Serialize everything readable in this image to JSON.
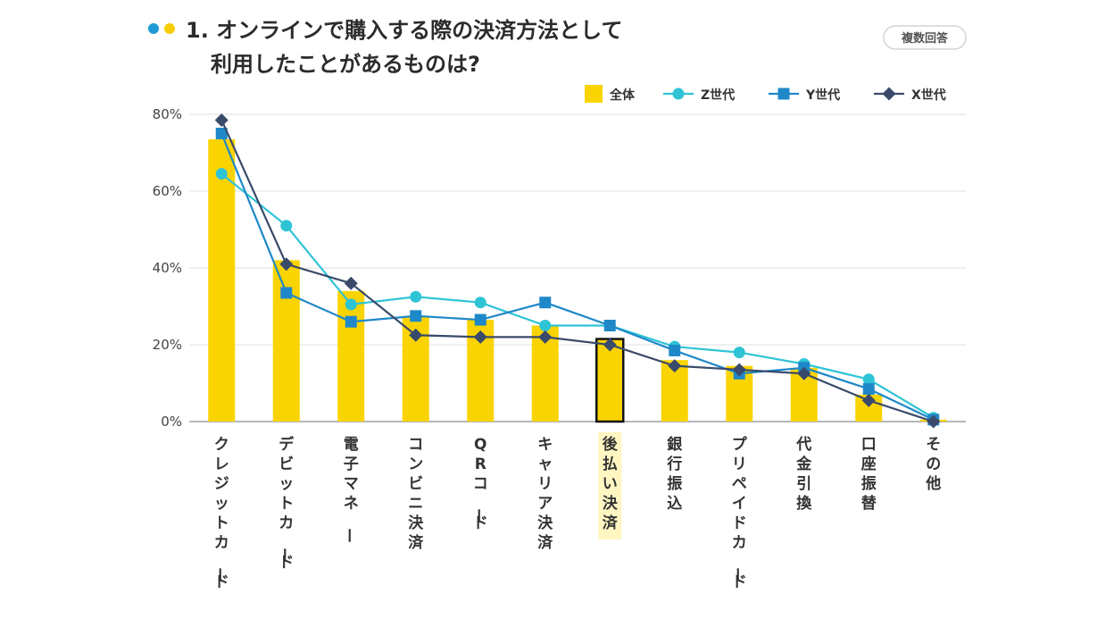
{
  "header": {
    "title_line1": "1. オンラインで購入する際の決済方法として",
    "title_line2": "利用したことがあるものは?",
    "badge": "複数回答",
    "dot_colors": [
      "#1e9bd7",
      "#f5cd00"
    ]
  },
  "legend": {
    "items": [
      {
        "label": "全体",
        "marker": "square-bar",
        "color": "#fad400"
      },
      {
        "label": "Z世代",
        "marker": "circle",
        "color": "#2ec4d6"
      },
      {
        "label": "Y世代",
        "marker": "square",
        "color": "#1f88c9"
      },
      {
        "label": "X世代",
        "marker": "diamond",
        "color": "#3a4a6b"
      }
    ]
  },
  "chart_data": {
    "type": "bar",
    "categories": [
      "クレジットカード",
      "デビットカード",
      "電子マネー",
      "コンビニ決済",
      "QRコード",
      "キャリア決済",
      "後払い決済",
      "銀行振込",
      "プリペイドカード",
      "代金引換",
      "口座振替",
      "その他"
    ],
    "highlight_category": "後払い決済",
    "ylim": [
      0,
      80
    ],
    "yticks": [
      0,
      20,
      40,
      60,
      80
    ],
    "ytick_labels": [
      "0%",
      "20%",
      "40%",
      "60%",
      "80%"
    ],
    "grid": true,
    "legend_position": "top-right",
    "series": [
      {
        "name": "全体",
        "type": "bar",
        "color": "#fad400",
        "values": [
          73.5,
          42,
          34,
          27.5,
          26.5,
          25,
          21.5,
          16,
          14.5,
          14,
          7,
          0.5
        ]
      },
      {
        "name": "Z世代",
        "type": "line",
        "marker": "circle",
        "color": "#2ec4d6",
        "values": [
          64.5,
          51,
          30.5,
          32.5,
          31,
          25,
          25,
          19.5,
          18,
          15,
          11,
          1
        ]
      },
      {
        "name": "Y世代",
        "type": "line",
        "marker": "square",
        "color": "#1f88c9",
        "values": [
          75,
          33.5,
          26,
          27.5,
          26.5,
          31,
          25,
          18.5,
          12.5,
          14,
          8.5,
          0.5
        ]
      },
      {
        "name": "X世代",
        "type": "line",
        "marker": "diamond",
        "color": "#3a4a6b",
        "values": [
          78.5,
          41,
          36,
          22.5,
          22,
          22,
          20,
          14.5,
          13.5,
          12.5,
          5.5,
          0
        ]
      }
    ]
  }
}
